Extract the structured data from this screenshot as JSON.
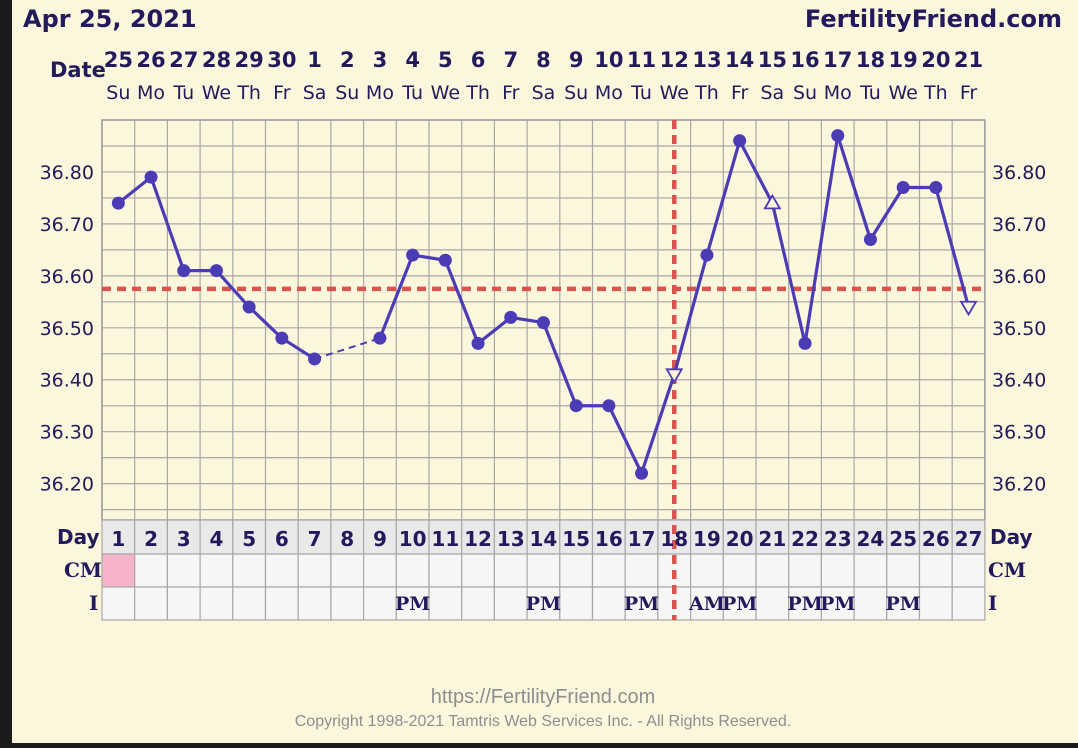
{
  "header": {
    "date": "Apr 25, 2021",
    "site": "FertilityFriend.com"
  },
  "labels": {
    "date": "Date",
    "day": "Day",
    "cm": "CM",
    "intercourse": "I"
  },
  "footer": {
    "url": "https://FertilityFriend.com",
    "copyright": "Copyright 1998-2021 Tamtris Web Services Inc. - All Rights Reserved."
  },
  "chart_data": {
    "type": "line",
    "ylim": [
      36.13,
      36.9
    ],
    "yticks": [
      "36.80",
      "36.70",
      "36.60",
      "36.50",
      "36.40",
      "36.30",
      "36.20"
    ],
    "ytick_values": [
      36.8,
      36.7,
      36.6,
      36.5,
      36.4,
      36.3,
      36.2
    ],
    "dates": [
      "25",
      "26",
      "27",
      "28",
      "29",
      "30",
      "1",
      "2",
      "3",
      "4",
      "5",
      "6",
      "7",
      "8",
      "9",
      "10",
      "11",
      "12",
      "13",
      "14",
      "15",
      "16",
      "17",
      "18",
      "19",
      "20",
      "21"
    ],
    "weekdays": [
      "Su",
      "Mo",
      "Tu",
      "We",
      "Th",
      "Fr",
      "Sa",
      "Su",
      "Mo",
      "Tu",
      "We",
      "Th",
      "Fr",
      "Sa",
      "Su",
      "Mo",
      "Tu",
      "We",
      "Th",
      "Fr",
      "Sa",
      "Su",
      "Mo",
      "Tu",
      "We",
      "Th",
      "Fr"
    ],
    "days": [
      "1",
      "2",
      "3",
      "4",
      "5",
      "6",
      "7",
      "8",
      "9",
      "10",
      "11",
      "12",
      "13",
      "14",
      "15",
      "16",
      "17",
      "18",
      "19",
      "20",
      "21",
      "22",
      "23",
      "24",
      "25",
      "26",
      "27"
    ],
    "temps": [
      36.74,
      36.79,
      36.61,
      36.61,
      36.54,
      36.48,
      36.44,
      null,
      36.48,
      36.64,
      36.63,
      36.47,
      36.52,
      36.51,
      36.35,
      36.35,
      36.22,
      36.41,
      36.64,
      36.86,
      36.74,
      36.47,
      36.87,
      36.67,
      36.77,
      36.77,
      36.54
    ],
    "markers": [
      "dot",
      "dot",
      "dot",
      "dot",
      "dot",
      "dot",
      "dot",
      "",
      "dot",
      "dot",
      "dot",
      "dot",
      "dot",
      "dot",
      "dot",
      "dot",
      "dot",
      "triangle-down",
      "dot",
      "dot",
      "triangle-up",
      "dot",
      "dot",
      "dot",
      "dot",
      "dot",
      "triangle-down"
    ],
    "dashed_segment": [
      7,
      9
    ],
    "coverline": 36.575,
    "ovulation_day": 18,
    "cm": [
      "pink",
      "",
      "",
      "",
      "",
      "",
      "",
      "",
      "",
      "",
      "",
      "",
      "",
      "",
      "",
      "",
      "",
      "",
      "",
      "",
      "",
      "",
      "",
      "",
      "",
      "",
      ""
    ],
    "intercourse": [
      "",
      "",
      "",
      "",
      "",
      "",
      "",
      "",
      "",
      "PM",
      "",
      "",
      "",
      "PM",
      "",
      "",
      "PM",
      "",
      "AM",
      "PM",
      "",
      "PM",
      "PM",
      "",
      "PM",
      "",
      ""
    ],
    "colors": {
      "line": "#4b3bb5",
      "coverline": "#d9534f",
      "grid": "#a8a8a8",
      "background": "#fbf6dc",
      "cm_pink": "#f6b3c9"
    }
  }
}
